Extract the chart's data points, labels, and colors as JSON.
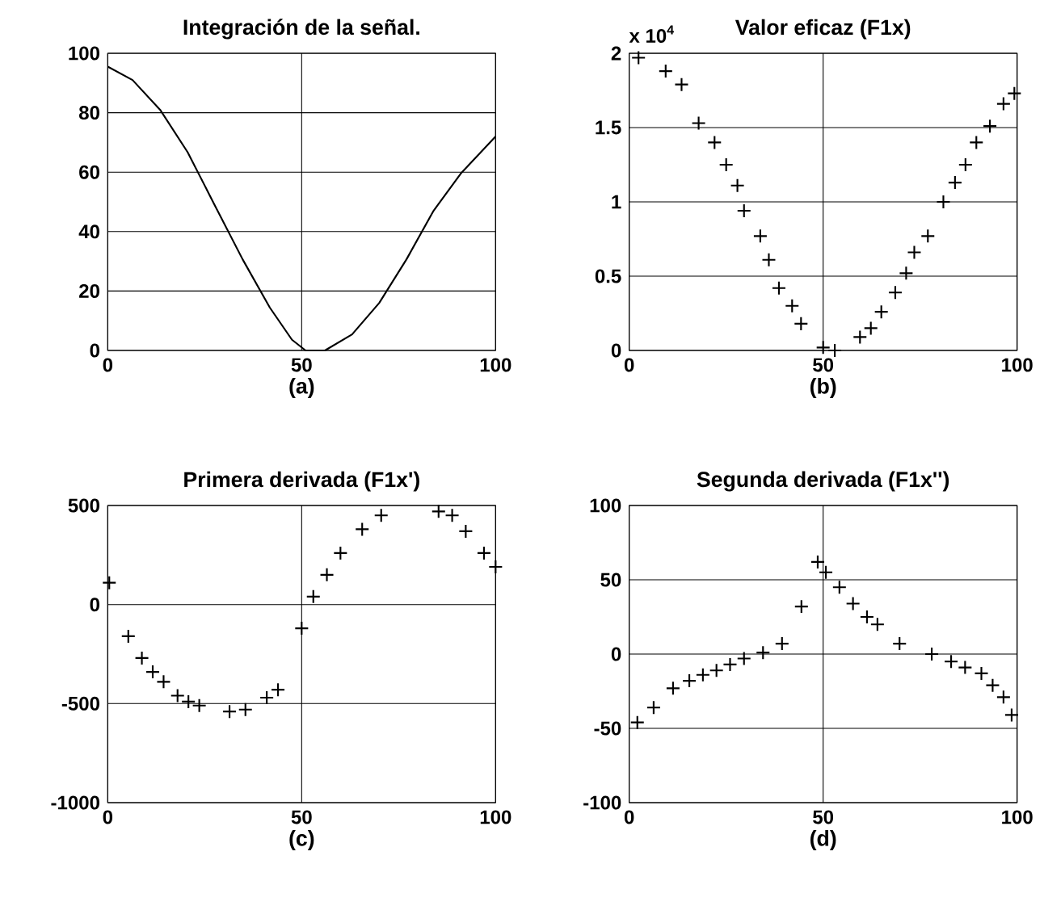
{
  "chart_data": [
    {
      "type": "line",
      "title": "Integración de la señal.",
      "xlabel": "(a)",
      "color": "#000000",
      "grid": true,
      "marker": "none",
      "xlim": [
        0,
        100
      ],
      "ylim": [
        0,
        100
      ],
      "xticks": [
        0,
        50,
        100
      ],
      "yticks": [
        0,
        20,
        40,
        60,
        80,
        100
      ],
      "x": [
        0,
        6.4,
        13.5,
        20.6,
        27.7,
        34.8,
        41.8,
        47.5,
        51,
        56,
        63,
        70,
        77,
        84,
        91,
        100
      ],
      "values": [
        95.5,
        91,
        81,
        66.7,
        48.6,
        30.6,
        14.4,
        3.6,
        0,
        0,
        5.4,
        16,
        30.6,
        47,
        59.5,
        72
      ]
    },
    {
      "type": "scatter",
      "title": "Valor eficaz (F1x)",
      "xlabel": "(b)",
      "annotations": [
        "x 10$^{4}$"
      ],
      "color": "#000000",
      "grid": true,
      "marker": "cross",
      "xlim": [
        0,
        100
      ],
      "ylim": [
        0,
        2
      ],
      "xticks": [
        0,
        50,
        100
      ],
      "yticks": [
        0,
        0.5,
        1,
        1.5,
        2
      ],
      "x": [
        2.4,
        9.4,
        13.5,
        17.9,
        22,
        25,
        27.9,
        29.6,
        33.8,
        36,
        38.6,
        42,
        44.3,
        50,
        53,
        59.5,
        62.3,
        65,
        68.6,
        71.4,
        73.5,
        77,
        81,
        84,
        86.7,
        89.5,
        93,
        96.5,
        99.3
      ],
      "values": [
        1.97,
        1.88,
        1.79,
        1.53,
        1.4,
        1.25,
        1.11,
        0.94,
        0.77,
        0.61,
        0.42,
        0.3,
        0.18,
        0.02,
        0,
        0.09,
        0.15,
        0.26,
        0.39,
        0.52,
        0.66,
        0.77,
        1.0,
        1.13,
        1.25,
        1.4,
        1.51,
        1.66,
        1.73
      ]
    },
    {
      "type": "scatter",
      "title": "Primera derivada (F1x')",
      "xlabel": "(c)",
      "color": "#000000",
      "grid": true,
      "marker": "cross",
      "xlim": [
        0,
        100
      ],
      "ylim": [
        -1000,
        500
      ],
      "xticks": [
        0,
        50,
        100
      ],
      "yticks": [
        -1000,
        -500,
        0,
        500
      ],
      "x": [
        0.4,
        5.3,
        8.8,
        11.6,
        14.4,
        18,
        20.8,
        23.6,
        31.4,
        35.5,
        41,
        43.9,
        50,
        53,
        56.5,
        60,
        65.6,
        70.5,
        85.3,
        88.8,
        92.3,
        97,
        100
      ],
      "values": [
        110,
        -160,
        -270,
        -340,
        -390,
        -460,
        -490,
        -510,
        -540,
        -530,
        -470,
        -430,
        -120,
        40,
        150,
        260,
        380,
        450,
        470,
        450,
        370,
        260,
        190
      ]
    },
    {
      "type": "scatter",
      "title": "Segunda derivada (F1x'')",
      "xlabel": "(d)",
      "color": "#000000",
      "grid": true,
      "marker": "cross",
      "xlim": [
        0,
        100
      ],
      "ylim": [
        -100,
        100
      ],
      "xticks": [
        0,
        50,
        100
      ],
      "yticks": [
        -100,
        -50,
        0,
        50,
        100
      ],
      "x": [
        2.1,
        6.3,
        11.3,
        15.5,
        19,
        22.5,
        26,
        29.6,
        34.5,
        39.4,
        44.4,
        48.6,
        50.7,
        54.2,
        57.7,
        61.3,
        64,
        69.7,
        78,
        83,
        86.6,
        90.8,
        93.7,
        96.5,
        98.6
      ],
      "values": [
        -46,
        -36,
        -23,
        -18,
        -14,
        -11,
        -7,
        -3,
        1,
        7,
        32,
        62,
        55,
        45,
        34,
        25,
        20,
        7,
        0,
        -5,
        -9,
        -13,
        -21,
        -29,
        -41
      ]
    }
  ]
}
